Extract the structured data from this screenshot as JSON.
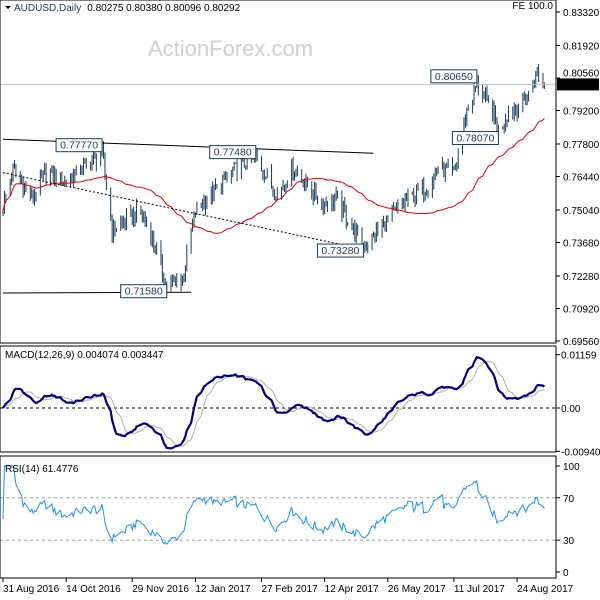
{
  "header": {
    "symbol": "AUDUSD,Daily",
    "ohlc": "0.80275 0.80380 0.80096 0.80292",
    "fe_label": "FE 100.0",
    "watermark": "ActionForex.com",
    "current_price": "0.80292"
  },
  "colors": {
    "bars": "#1a3c5a",
    "moving_average": "#e00000",
    "macd_main": "#000080",
    "macd_signal": "#b0b0b0",
    "rsi": "#1e90ff",
    "grid_dash": "#a0a0a0",
    "price_tag_bg": "#000000"
  },
  "chart_data": [
    {
      "type": "candlestick-bars",
      "title": "AUDUSD,Daily",
      "ylim": [
        0.6956,
        0.8332
      ],
      "y_ticks": [
        "0.83320",
        "0.81920",
        "0.80560",
        "0.79200",
        "0.77800",
        "0.76440",
        "0.75040",
        "0.73680",
        "0.72280",
        "0.70920",
        "0.69560"
      ],
      "x_ticks": [
        "31 Aug 2016",
        "14 Oct 2016",
        "29 Nov 2016",
        "12 Jan 2017",
        "27 Feb 2017",
        "12 Apr 2017",
        "26 May 2017",
        "11 Jul 2017",
        "24 Aug 2017"
      ],
      "x_tick_dates": [
        "2016-08-31",
        "2016-10-14",
        "2016-11-29",
        "2017-01-12",
        "2017-02-27",
        "2017-04-12",
        "2017-05-26",
        "2017-07-11",
        "2017-08-24"
      ],
      "close_keypoints": [
        [
          "2016-08-31",
          0.752
        ],
        [
          "2016-09-07",
          0.767
        ],
        [
          "2016-09-20",
          0.755
        ],
        [
          "2016-09-30",
          0.766
        ],
        [
          "2016-10-14",
          0.762
        ],
        [
          "2016-10-25",
          0.768
        ],
        [
          "2016-11-08",
          0.774
        ],
        [
          "2016-11-15",
          0.742
        ],
        [
          "2016-11-25",
          0.746
        ],
        [
          "2016-12-05",
          0.75
        ],
        [
          "2016-12-15",
          0.735
        ],
        [
          "2016-12-23",
          0.718
        ],
        [
          "2017-01-03",
          0.722
        ],
        [
          "2017-01-12",
          0.75
        ],
        [
          "2017-01-25",
          0.758
        ],
        [
          "2017-02-10",
          0.768
        ],
        [
          "2017-02-23",
          0.772
        ],
        [
          "2017-03-10",
          0.757
        ],
        [
          "2017-03-21",
          0.768
        ],
        [
          "2017-04-10",
          0.753
        ],
        [
          "2017-04-20",
          0.755
        ],
        [
          "2017-05-09",
          0.735
        ],
        [
          "2017-05-26",
          0.746
        ],
        [
          "2017-06-09",
          0.755
        ],
        [
          "2017-06-23",
          0.76
        ],
        [
          "2017-06-30",
          0.768
        ],
        [
          "2017-07-11",
          0.765
        ],
        [
          "2017-07-20",
          0.792
        ],
        [
          "2017-07-27",
          0.803
        ],
        [
          "2017-08-08",
          0.79
        ],
        [
          "2017-08-11",
          0.783
        ],
        [
          "2017-08-18",
          0.792
        ],
        [
          "2017-08-24",
          0.793
        ],
        [
          "2017-08-31",
          0.797
        ],
        [
          "2017-09-07",
          0.808
        ],
        [
          "2017-09-12",
          0.8029
        ]
      ],
      "annotations": [
        {
          "text": "0.77770",
          "date": "2016-11-08",
          "price": 0.7777
        },
        {
          "text": "0.77480",
          "date": "2017-02-23",
          "price": 0.7748
        },
        {
          "text": "0.71580",
          "date": "2016-12-23",
          "price": 0.7158
        },
        {
          "text": "0.73280",
          "date": "2017-05-09",
          "price": 0.7328
        },
        {
          "text": "0.80650",
          "date": "2017-07-27",
          "price": 0.8065
        },
        {
          "text": "0.78070",
          "date": "2017-08-11",
          "price": 0.7807
        }
      ],
      "trendlines": [
        {
          "style": "solid",
          "from": [
            "2016-08-31",
            0.78
          ],
          "to": [
            "2017-05-16",
            0.7741
          ]
        },
        {
          "style": "solid",
          "from": [
            "2016-08-31",
            0.7157
          ],
          "to": [
            "2017-01-09",
            0.716
          ]
        },
        {
          "style": "dotted",
          "from": [
            "2016-08-31",
            0.766
          ],
          "to": [
            "2017-05-09",
            0.734
          ]
        }
      ],
      "moving_average_period": 55
    },
    {
      "type": "line",
      "title": "MACD(12,26,9) 0.004074 0.003447",
      "y_ticks": [
        "0.01159",
        "0.00",
        "-0.009408"
      ],
      "ylim": [
        -0.009408,
        0.01159
      ]
    },
    {
      "type": "line",
      "title": "RSI(14) 61.4776",
      "y_ticks": [
        "100",
        "70",
        "30",
        "0"
      ],
      "ylim": [
        0,
        100
      ],
      "levels": [
        70,
        30
      ]
    }
  ]
}
